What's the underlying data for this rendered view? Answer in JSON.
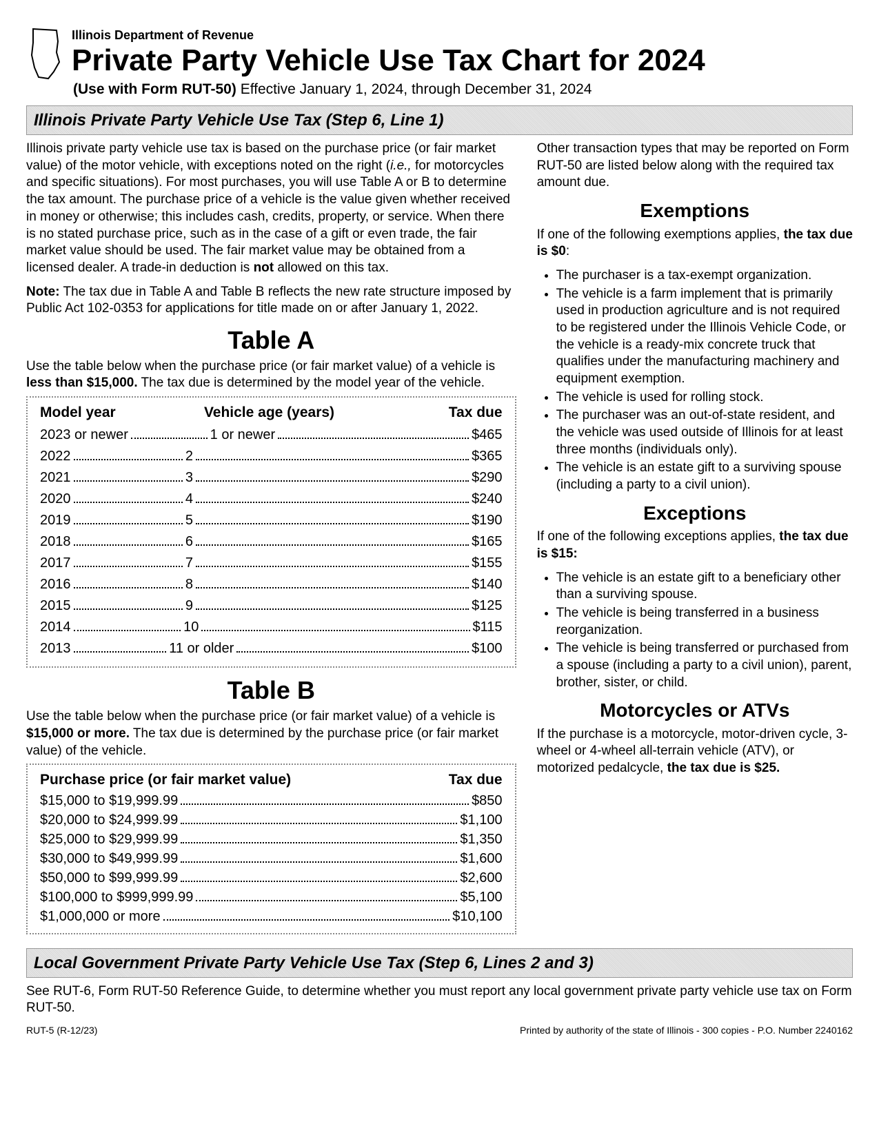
{
  "header": {
    "department": "Illinois Department of Revenue",
    "title": "Private Party Vehicle Use Tax Chart for 2024",
    "subtitle_bold": "(Use with Form RUT-50)",
    "subtitle_rest": " Effective January 1, 2024, through December 31, 2024"
  },
  "section1_bar": "Illinois Private Party Vehicle Use Tax (Step 6, Line 1)",
  "intro_p1a": "Illinois private party vehicle use tax is based on the purchase price (or fair market value) of the motor vehicle, with exceptions noted on the right (",
  "intro_p1_ie": "i.e.,",
  "intro_p1b": " for motorcycles and specific situations). For most purchases, you will use Table A or B to determine the tax amount. The purchase price of a vehicle is the value given whether received in money or otherwise; this includes cash, credits, property, or service. When there is no stated purchase price, such as in the case of a gift or even trade, the fair market value should be used. The fair market value may be obtained from a licensed dealer. A trade-in deduction is ",
  "intro_p1_not": "not",
  "intro_p1c": " allowed on this tax.",
  "note_label": "Note:",
  "note_text": " The tax due in Table A and Table B reflects the new rate structure imposed by Public Act 102-0353 for applications for title made on or after January 1, 2022.",
  "tableA": {
    "title": "Table A",
    "lead_a": "Use the table below when the purchase price (or fair market value) of a vehicle is ",
    "lead_bold": "less than $15,000.",
    "lead_b": " The tax due is determined by the model year of the vehicle.",
    "h1": "Model year",
    "h2": "Vehicle age (years)",
    "h3": "Tax due",
    "rows": [
      {
        "y": "2023 or newer",
        "a": "1 or newer",
        "t": "$465"
      },
      {
        "y": "2022",
        "a": "2",
        "t": "$365"
      },
      {
        "y": "2021",
        "a": "3",
        "t": "$290"
      },
      {
        "y": "2020",
        "a": "4",
        "t": "$240"
      },
      {
        "y": "2019",
        "a": "5",
        "t": "$190"
      },
      {
        "y": "2018",
        "a": "6",
        "t": "$165"
      },
      {
        "y": "2017",
        "a": "7",
        "t": "$155"
      },
      {
        "y": "2016",
        "a": "8",
        "t": "$140"
      },
      {
        "y": "2015",
        "a": "9",
        "t": "$125"
      },
      {
        "y": "2014",
        "a": "10",
        "t": "$115"
      },
      {
        "y": "2013",
        "a": "11 or older",
        "t": "$100"
      }
    ]
  },
  "tableB": {
    "title": "Table B",
    "lead_a": "Use the table below when the purchase price (or fair market value) of a vehicle is ",
    "lead_bold": "$15,000 or more.",
    "lead_b": " The tax due is determined by the purchase price (or fair market value) of the vehicle.",
    "hL": "Purchase price (or fair market value)",
    "hR": "Tax due",
    "rows": [
      {
        "p": "$15,000  to  $19,999.99",
        "t": "$850"
      },
      {
        "p": "$20,000  to  $24,999.99",
        "t": "$1,100"
      },
      {
        "p": "$25,000  to  $29,999.99",
        "t": "$1,350"
      },
      {
        "p": "$30,000  to  $49,999.99",
        "t": "$1,600"
      },
      {
        "p": "$50,000  to  $99,999.99",
        "t": "$2,600"
      },
      {
        "p": "$100,000  to  $999,999.99",
        "t": "$5,100"
      },
      {
        "p": "$1,000,000  or more",
        "t": "$10,100"
      }
    ]
  },
  "right": {
    "intro": "Other transaction types that may be reported on Form RUT-50 are listed below along with the required tax amount due.",
    "exemptions_h": "Exemptions",
    "exemptions_lead_a": "If one of the following exemptions applies, ",
    "exemptions_lead_bold": "the tax due is $0",
    "exemptions_lead_b": ":",
    "exemptions": [
      "The purchaser is a tax-exempt organization.",
      "The vehicle is a farm implement that is primarily used in production agriculture and is not required to be registered under the Illinois Vehicle Code, or the vehicle is a ready-mix concrete truck that qualifies under the manufacturing machinery and equipment exemption.",
      "The vehicle is used for rolling stock.",
      "The purchaser was an out-of-state resident, and the vehicle was used outside of Illinois for at least three months (individuals only).",
      "The vehicle is an estate gift to a surviving spouse (including a party to a civil union)."
    ],
    "exceptions_h": "Exceptions",
    "exceptions_lead_a": "If one of the following exceptions applies, ",
    "exceptions_lead_bold": "the tax due is $15:",
    "exceptions": [
      "The vehicle is an estate gift to a beneficiary other than a surviving spouse.",
      "The vehicle is being transferred in a business reorganization.",
      "The vehicle is being transferred or purchased from a spouse (including a party to a civil union), parent, brother, sister, or child."
    ],
    "motor_h": "Motorcycles or ATVs",
    "motor_a": "If the purchase is a motorcycle, motor-driven cycle, 3-wheel or 4-wheel all-terrain vehicle (ATV), or motorized pedalcycle, ",
    "motor_bold": "the tax due is $25."
  },
  "section2_bar": "Local Government Private Party Vehicle Use Tax (Step 6, Lines 2 and 3)",
  "local_text": "See RUT-6, Form RUT-50 Reference Guide, to determine whether you must report any local government private party vehicle use tax on Form RUT-50.",
  "footer_left": "RUT-5 (R-12/23)",
  "footer_right": "Printed by authority of the state of Illinois - 300 copies - P.O. Number 2240162"
}
